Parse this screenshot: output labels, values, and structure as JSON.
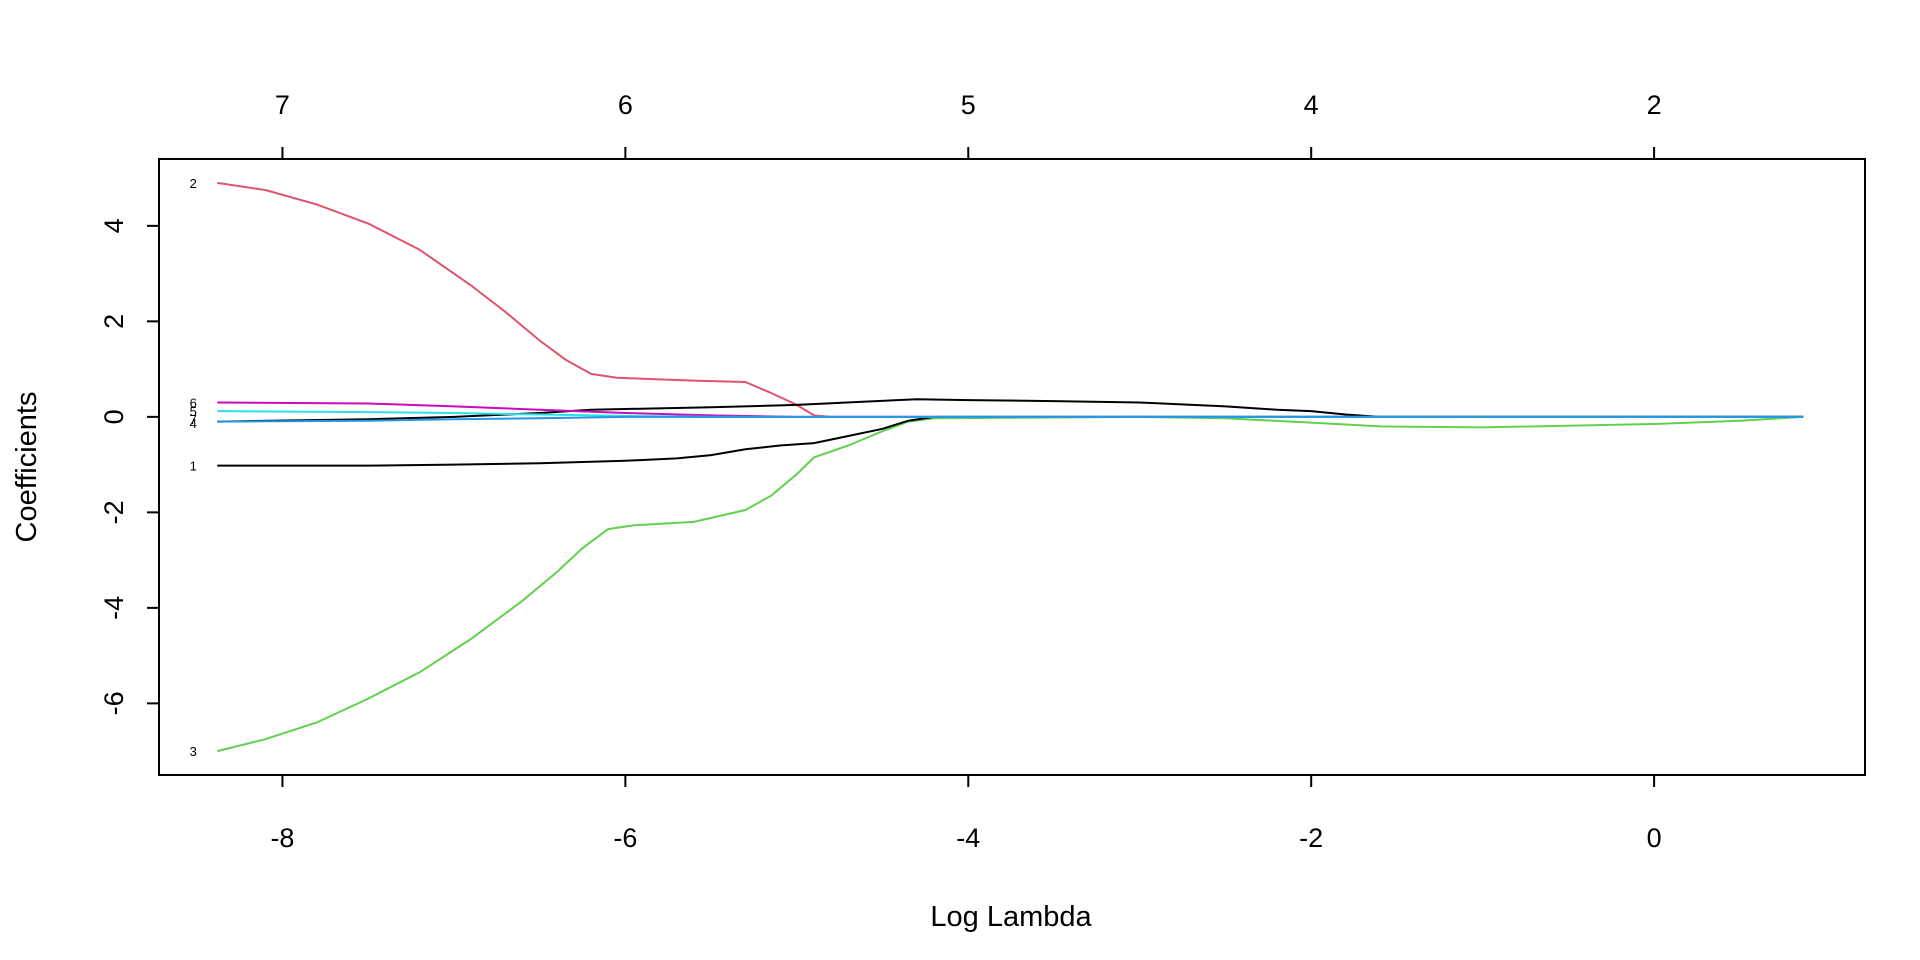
{
  "chart_data": {
    "type": "line",
    "title": "",
    "xlabel": "Log Lambda",
    "ylabel": "Coefficients",
    "xlim": [
      -8.72,
      1.23
    ],
    "ylim": [
      -7.5,
      5.4
    ],
    "grid": false,
    "x_ticks": [
      -8,
      -6,
      -4,
      -2,
      0
    ],
    "y_ticks": [
      -6,
      -4,
      -2,
      0,
      2,
      4
    ],
    "top_axis": {
      "positions": [
        -8,
        -6,
        -4,
        -2,
        0
      ],
      "labels": [
        "7",
        "6",
        "5",
        "4",
        "2"
      ]
    },
    "series": [
      {
        "name": "2",
        "color": "#DF536B",
        "points": [
          [
            -8.38,
            4.9
          ],
          [
            -8.1,
            4.75
          ],
          [
            -7.8,
            4.45
          ],
          [
            -7.5,
            4.05
          ],
          [
            -7.2,
            3.5
          ],
          [
            -6.9,
            2.75
          ],
          [
            -6.7,
            2.2
          ],
          [
            -6.5,
            1.6
          ],
          [
            -6.35,
            1.2
          ],
          [
            -6.2,
            0.9
          ],
          [
            -6.05,
            0.82
          ],
          [
            -5.9,
            0.8
          ],
          [
            -5.6,
            0.76
          ],
          [
            -5.3,
            0.73
          ],
          [
            -5.15,
            0.5
          ],
          [
            -5.0,
            0.25
          ],
          [
            -4.9,
            0.03
          ],
          [
            -4.8,
            0.0
          ],
          [
            0.87,
            0.0
          ]
        ]
      },
      {
        "name": "3",
        "color": "#61D04F",
        "points": [
          [
            -8.38,
            -7.0
          ],
          [
            -8.1,
            -6.75
          ],
          [
            -7.8,
            -6.4
          ],
          [
            -7.5,
            -5.9
          ],
          [
            -7.2,
            -5.35
          ],
          [
            -6.9,
            -4.65
          ],
          [
            -6.6,
            -3.85
          ],
          [
            -6.4,
            -3.25
          ],
          [
            -6.25,
            -2.75
          ],
          [
            -6.1,
            -2.35
          ],
          [
            -5.95,
            -2.27
          ],
          [
            -5.6,
            -2.2
          ],
          [
            -5.3,
            -1.95
          ],
          [
            -5.15,
            -1.65
          ],
          [
            -5.0,
            -1.2
          ],
          [
            -4.9,
            -0.85
          ],
          [
            -4.7,
            -0.6
          ],
          [
            -4.5,
            -0.3
          ],
          [
            -4.35,
            -0.1
          ],
          [
            -4.2,
            -0.03
          ],
          [
            -3.0,
            0.0
          ],
          [
            -2.5,
            -0.03
          ],
          [
            -2.0,
            -0.12
          ],
          [
            -1.6,
            -0.2
          ],
          [
            -1.0,
            -0.22
          ],
          [
            0.0,
            -0.15
          ],
          [
            0.5,
            -0.08
          ],
          [
            0.87,
            0.0
          ]
        ]
      },
      {
        "name": "1",
        "color": "#000000",
        "points": [
          [
            -8.38,
            -1.02
          ],
          [
            -7.5,
            -1.02
          ],
          [
            -7.0,
            -1.0
          ],
          [
            -6.5,
            -0.97
          ],
          [
            -6.0,
            -0.92
          ],
          [
            -5.7,
            -0.87
          ],
          [
            -5.5,
            -0.8
          ],
          [
            -5.3,
            -0.68
          ],
          [
            -5.1,
            -0.6
          ],
          [
            -4.9,
            -0.55
          ],
          [
            -4.7,
            -0.4
          ],
          [
            -4.5,
            -0.25
          ],
          [
            -4.35,
            -0.08
          ],
          [
            -4.2,
            0.0
          ],
          [
            0.87,
            0.0
          ]
        ]
      },
      {
        "name": "7",
        "color": "#000000",
        "points": [
          [
            -8.38,
            -0.1
          ],
          [
            -7.5,
            -0.05
          ],
          [
            -7.0,
            0.0
          ],
          [
            -6.5,
            0.08
          ],
          [
            -6.2,
            0.15
          ],
          [
            -5.5,
            0.2
          ],
          [
            -5.0,
            0.25
          ],
          [
            -4.6,
            0.32
          ],
          [
            -4.3,
            0.37
          ],
          [
            -4.0,
            0.35
          ],
          [
            -3.5,
            0.33
          ],
          [
            -3.0,
            0.3
          ],
          [
            -2.5,
            0.22
          ],
          [
            -2.2,
            0.15
          ],
          [
            -2.0,
            0.12
          ],
          [
            -1.8,
            0.05
          ],
          [
            -1.6,
            0.0
          ],
          [
            0.87,
            0.0
          ]
        ]
      },
      {
        "name": "6",
        "color": "#CD0BBC",
        "points": [
          [
            -8.38,
            0.3
          ],
          [
            -7.5,
            0.28
          ],
          [
            -7.0,
            0.22
          ],
          [
            -6.5,
            0.15
          ],
          [
            -6.0,
            0.08
          ],
          [
            -5.5,
            0.03
          ],
          [
            -5.0,
            0.0
          ],
          [
            0.87,
            0.0
          ]
        ]
      },
      {
        "name": "5",
        "color": "#28E2E5",
        "points": [
          [
            -8.38,
            0.12
          ],
          [
            -7.5,
            0.1
          ],
          [
            -7.0,
            0.08
          ],
          [
            -6.5,
            0.05
          ],
          [
            -6.0,
            0.02
          ],
          [
            -5.5,
            0.0
          ],
          [
            0.87,
            0.0
          ]
        ]
      },
      {
        "name": "4",
        "color": "#2297E6",
        "points": [
          [
            -8.38,
            -0.1
          ],
          [
            -7.5,
            -0.08
          ],
          [
            -7.0,
            -0.05
          ],
          [
            -6.5,
            -0.03
          ],
          [
            -6.0,
            0.0
          ],
          [
            -2.5,
            0.0
          ],
          [
            -2.0,
            0.0
          ],
          [
            0.87,
            0.0
          ]
        ]
      }
    ],
    "line_labels": [
      {
        "text": "2",
        "y": 4.9
      },
      {
        "text": "6",
        "y": 0.3
      },
      {
        "text": "5",
        "y": 0.12
      },
      {
        "text": "7",
        "y": -0.05
      },
      {
        "text": "4",
        "y": -0.13
      },
      {
        "text": "1",
        "y": -1.02
      },
      {
        "text": "3",
        "y": -7.0
      }
    ]
  }
}
